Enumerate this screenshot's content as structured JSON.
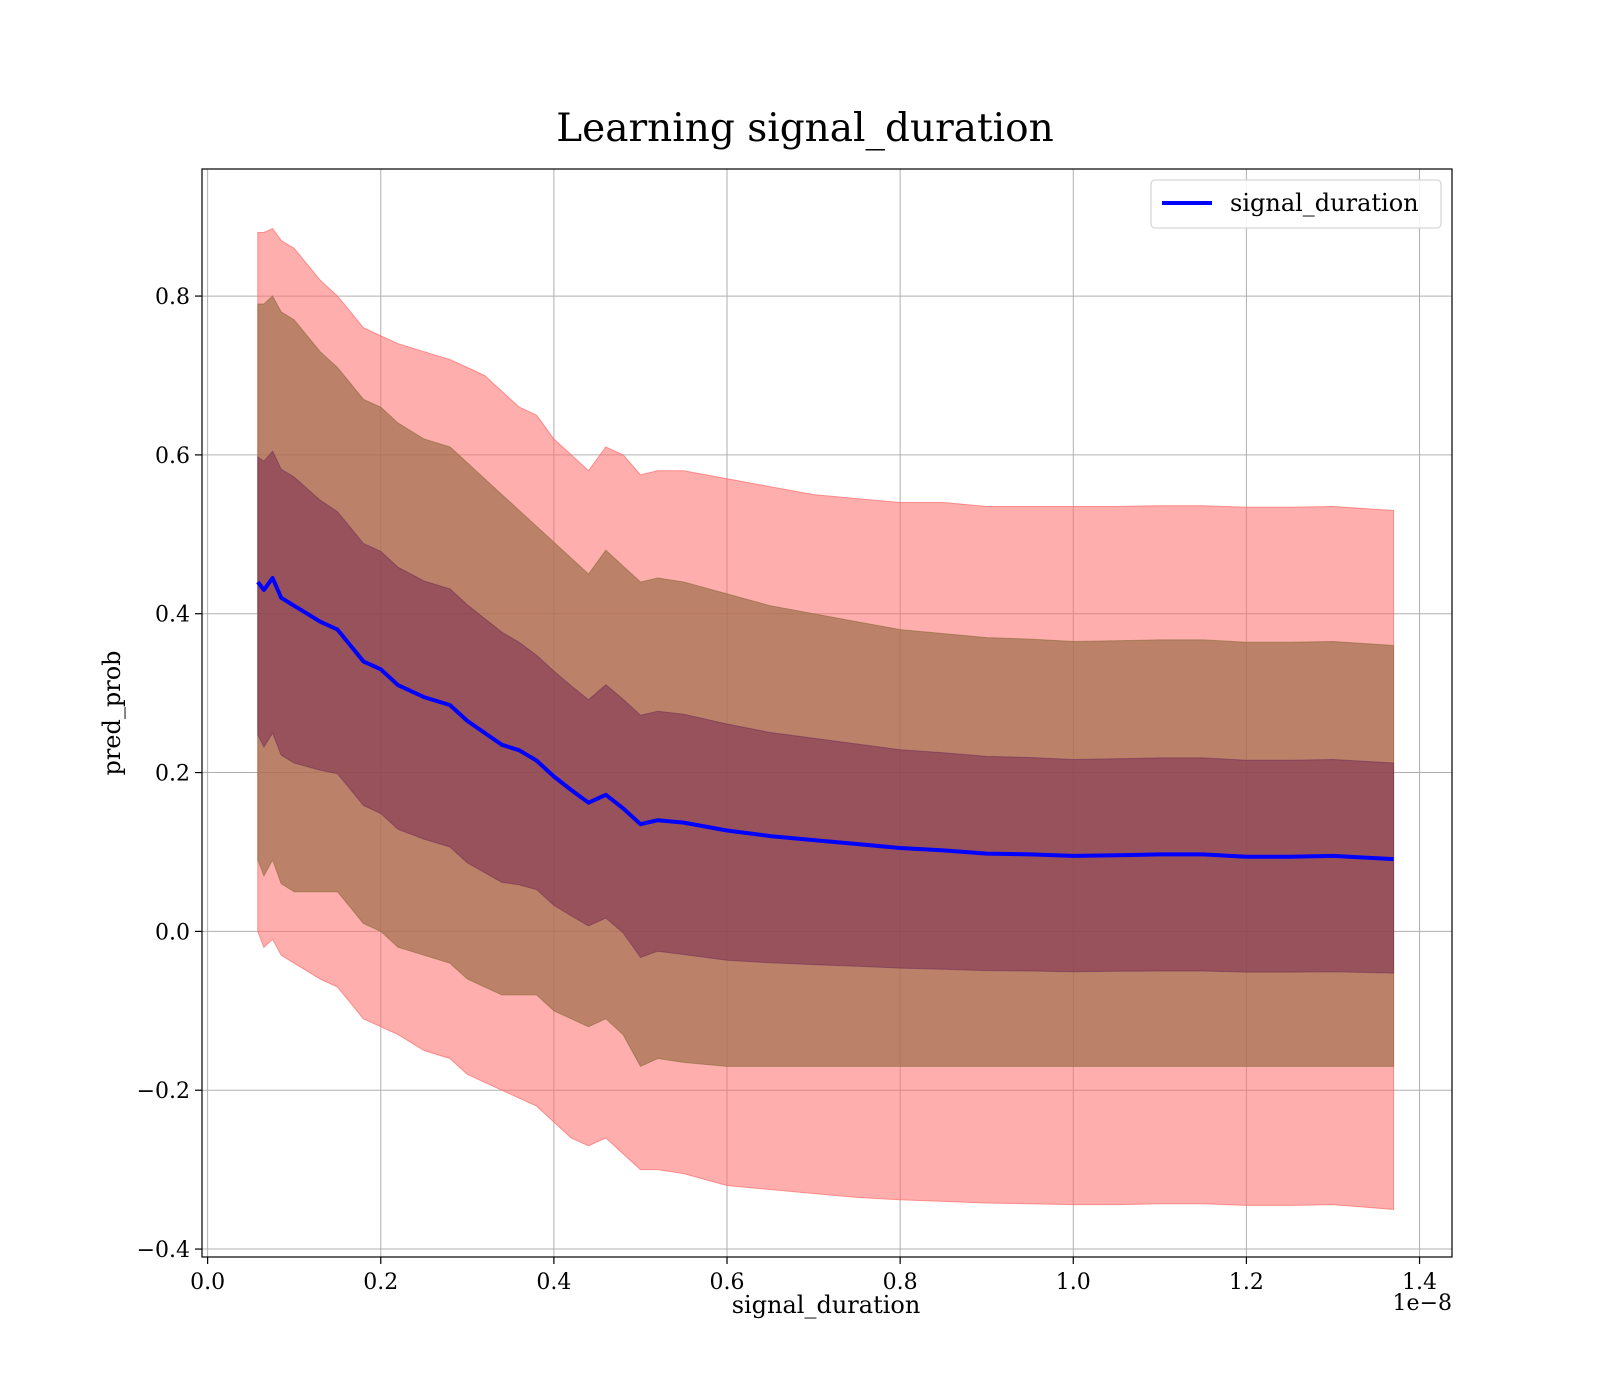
{
  "chart_data": {
    "type": "line",
    "title": "Learning signal_duration",
    "xlabel": "signal_duration",
    "ylabel": "pred_prob",
    "x_offset_label": "1e−8",
    "xlim": [
      -0.0065,
      1.4375
    ],
    "ylim": [
      -0.41,
      0.96
    ],
    "x_ticks": [
      0.0,
      0.2,
      0.4,
      0.6,
      0.8,
      1.0,
      1.2,
      1.4
    ],
    "x_tick_labels": [
      "0.0",
      "0.2",
      "0.4",
      "0.6",
      "0.8",
      "1.0",
      "1.2",
      "1.4"
    ],
    "y_ticks": [
      -0.4,
      -0.2,
      0.0,
      0.2,
      0.4,
      0.6,
      0.8
    ],
    "y_tick_labels": [
      "−0.4",
      "−0.2",
      "0.0",
      "0.2",
      "0.4",
      "0.6",
      "0.8"
    ],
    "grid": true,
    "legend": {
      "position": "upper-right",
      "entries": [
        "signal_duration"
      ]
    },
    "colors": {
      "mean_line": "#0000ff",
      "band_outer": "#ff6b6b",
      "band_middle": "#a06f4c",
      "band_inner": "#7a2c50"
    },
    "series": [
      {
        "name": "signal_duration",
        "x": [
          0.058,
          0.065,
          0.075,
          0.085,
          0.1,
          0.115,
          0.13,
          0.15,
          0.165,
          0.18,
          0.2,
          0.22,
          0.25,
          0.28,
          0.3,
          0.32,
          0.34,
          0.36,
          0.38,
          0.4,
          0.42,
          0.44,
          0.46,
          0.48,
          0.5,
          0.52,
          0.55,
          0.6,
          0.65,
          0.7,
          0.75,
          0.8,
          0.85,
          0.9,
          0.95,
          1.0,
          1.05,
          1.1,
          1.15,
          1.2,
          1.25,
          1.3,
          1.37
        ],
        "mean": [
          0.44,
          0.43,
          0.445,
          0.42,
          0.41,
          0.4,
          0.39,
          0.38,
          0.36,
          0.34,
          0.33,
          0.31,
          0.295,
          0.285,
          0.265,
          0.25,
          0.235,
          0.228,
          0.215,
          0.195,
          0.178,
          0.162,
          0.172,
          0.155,
          0.135,
          0.14,
          0.137,
          0.127,
          0.12,
          0.115,
          0.11,
          0.105,
          0.102,
          0.098,
          0.097,
          0.095,
          0.096,
          0.097,
          0.097,
          0.094,
          0.094,
          0.095,
          0.091
        ],
        "upper_2std": [
          0.88,
          0.88,
          0.885,
          0.87,
          0.86,
          0.84,
          0.82,
          0.8,
          0.78,
          0.76,
          0.75,
          0.74,
          0.73,
          0.72,
          0.71,
          0.7,
          0.68,
          0.66,
          0.65,
          0.62,
          0.6,
          0.58,
          0.61,
          0.6,
          0.575,
          0.58,
          0.58,
          0.57,
          0.56,
          0.55,
          0.545,
          0.54,
          0.54,
          0.535,
          0.535,
          0.535,
          0.535,
          0.536,
          0.536,
          0.534,
          0.534,
          0.535,
          0.53
        ],
        "upper_1std": [
          0.79,
          0.79,
          0.8,
          0.78,
          0.77,
          0.75,
          0.73,
          0.71,
          0.69,
          0.67,
          0.66,
          0.64,
          0.62,
          0.61,
          0.59,
          0.57,
          0.55,
          0.53,
          0.51,
          0.49,
          0.47,
          0.45,
          0.48,
          0.46,
          0.44,
          0.445,
          0.44,
          0.425,
          0.41,
          0.4,
          0.39,
          0.38,
          0.375,
          0.37,
          0.368,
          0.365,
          0.366,
          0.367,
          0.367,
          0.364,
          0.364,
          0.365,
          0.36
        ],
        "lower_1std": [
          0.09,
          0.07,
          0.09,
          0.06,
          0.05,
          0.05,
          0.05,
          0.05,
          0.03,
          0.01,
          0.0,
          -0.02,
          -0.03,
          -0.04,
          -0.06,
          -0.07,
          -0.08,
          -0.08,
          -0.08,
          -0.1,
          -0.11,
          -0.12,
          -0.11,
          -0.13,
          -0.17,
          -0.16,
          -0.165,
          -0.17,
          -0.17,
          -0.17,
          -0.17,
          -0.17,
          -0.17,
          -0.17,
          -0.17,
          -0.17,
          -0.17,
          -0.17,
          -0.17,
          -0.17,
          -0.17,
          -0.17,
          -0.17
        ],
        "lower_2std": [
          0.0,
          -0.02,
          -0.01,
          -0.03,
          -0.04,
          -0.05,
          -0.06,
          -0.07,
          -0.09,
          -0.11,
          -0.12,
          -0.13,
          -0.15,
          -0.16,
          -0.18,
          -0.19,
          -0.2,
          -0.21,
          -0.22,
          -0.24,
          -0.26,
          -0.27,
          -0.26,
          -0.28,
          -0.3,
          -0.3,
          -0.305,
          -0.32,
          -0.325,
          -0.33,
          -0.335,
          -0.338,
          -0.34,
          -0.342,
          -0.343,
          -0.344,
          -0.344,
          -0.343,
          -0.343,
          -0.345,
          -0.345,
          -0.344,
          -0.35
        ]
      }
    ]
  }
}
